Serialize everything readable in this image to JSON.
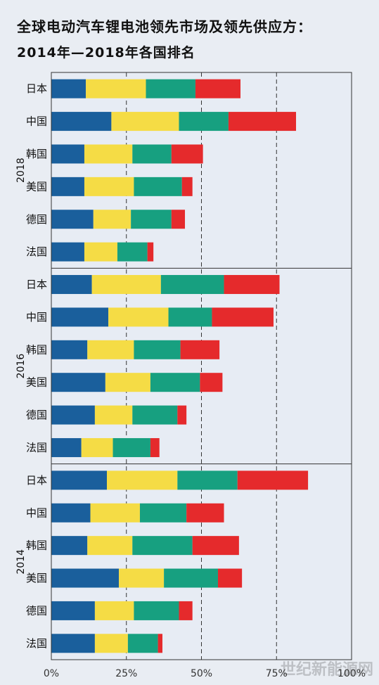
{
  "title": "全球电动汽车锂电池领先市场及领先供应方：",
  "subtitle": "2014年—2018年各国排名",
  "watermark": "世纪新能源网",
  "colors": [
    "#1a5f9c",
    "#f5dc45",
    "#17a080",
    "#e52a2c"
  ],
  "chart_data": {
    "type": "bar",
    "orientation": "horizontal",
    "stacked": true,
    "xlim": [
      0,
      100
    ],
    "xticks": [
      "0%",
      "25%",
      "50%",
      "75%",
      "100%"
    ],
    "xtick_values": [
      0,
      25,
      50,
      75,
      100
    ],
    "grid": "dashed vertical at 25%, 50%, 75%",
    "groups": [
      {
        "year": "2018",
        "categories": [
          "日本",
          "中国",
          "韩国",
          "美国",
          "德国",
          "法国"
        ],
        "segments": [
          [
            11.5,
            20.0,
            16.5,
            15.0
          ],
          [
            20.0,
            22.5,
            16.5,
            22.5
          ],
          [
            11.0,
            16.0,
            13.0,
            10.5
          ],
          [
            11.0,
            16.5,
            16.0,
            3.5
          ],
          [
            14.0,
            12.5,
            13.5,
            4.5
          ],
          [
            11.0,
            11.0,
            10.0,
            2.0
          ]
        ]
      },
      {
        "year": "2016",
        "categories": [
          "日本",
          "中国",
          "韩国",
          "美国",
          "德国",
          "法国"
        ],
        "segments": [
          [
            13.5,
            23.0,
            21.0,
            18.5
          ],
          [
            19.0,
            20.0,
            14.5,
            20.5
          ],
          [
            12.0,
            15.5,
            15.5,
            13.0
          ],
          [
            18.0,
            15.0,
            16.5,
            7.5
          ],
          [
            14.5,
            12.5,
            15.0,
            3.0
          ],
          [
            10.0,
            10.5,
            12.5,
            3.0
          ]
        ]
      },
      {
        "year": "2014",
        "categories": [
          "日本",
          "中国",
          "韩国",
          "美国",
          "德国",
          "法国"
        ],
        "segments": [
          [
            18.5,
            23.5,
            20.0,
            23.5
          ],
          [
            13.0,
            16.5,
            15.5,
            12.5
          ],
          [
            12.0,
            15.0,
            20.0,
            15.5
          ],
          [
            22.5,
            15.0,
            18.0,
            8.0
          ],
          [
            14.5,
            13.0,
            15.0,
            4.5
          ],
          [
            14.5,
            11.0,
            10.0,
            1.5
          ]
        ]
      }
    ]
  }
}
